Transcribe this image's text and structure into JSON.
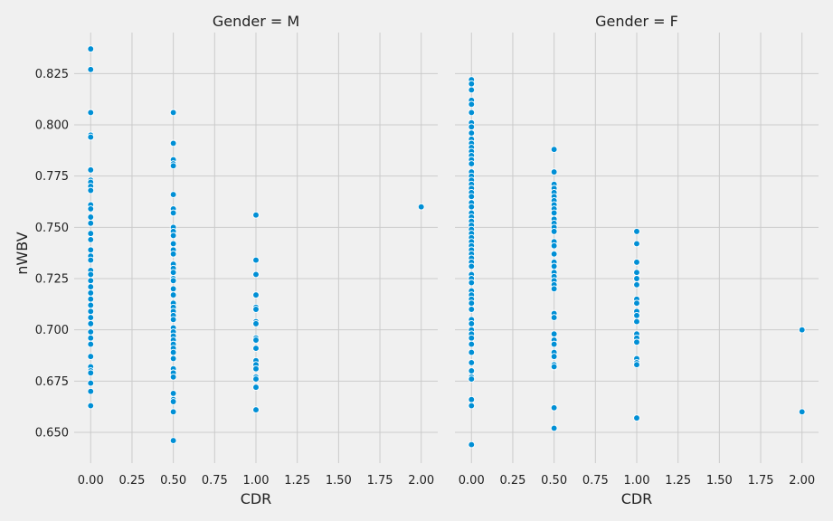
{
  "chart_data": {
    "type": "scatter",
    "xlabel": "CDR",
    "ylabel": "nWBV",
    "xlim": [
      -0.1,
      2.1
    ],
    "ylim": [
      0.635,
      0.845
    ],
    "x_ticks": [
      "0.00",
      "0.25",
      "0.50",
      "0.75",
      "1.00",
      "1.25",
      "1.50",
      "1.75",
      "2.00"
    ],
    "y_ticks": [
      "0.650",
      "0.675",
      "0.700",
      "0.725",
      "0.750",
      "0.775",
      "0.800",
      "0.825"
    ],
    "grid": true,
    "point_color": "#008fd5",
    "panels": [
      {
        "title": "Gender = M",
        "points": [
          {
            "cdr": 0.0,
            "values": [
              0.837,
              0.827,
              0.806,
              0.795,
              0.794,
              0.778,
              0.773,
              0.772,
              0.77,
              0.768,
              0.761,
              0.759,
              0.755,
              0.752,
              0.747,
              0.744,
              0.739,
              0.736,
              0.734,
              0.729,
              0.727,
              0.724,
              0.721,
              0.718,
              0.715,
              0.712,
              0.709,
              0.706,
              0.703,
              0.699,
              0.696,
              0.693,
              0.687,
              0.682,
              0.68,
              0.679,
              0.674,
              0.67,
              0.663
            ]
          },
          {
            "cdr": 0.5,
            "values": [
              0.806,
              0.791,
              0.783,
              0.781,
              0.78,
              0.766,
              0.759,
              0.757,
              0.75,
              0.748,
              0.746,
              0.742,
              0.739,
              0.737,
              0.732,
              0.73,
              0.728,
              0.725,
              0.724,
              0.72,
              0.717,
              0.713,
              0.711,
              0.709,
              0.707,
              0.705,
              0.701,
              0.699,
              0.697,
              0.695,
              0.693,
              0.691,
              0.689,
              0.686,
              0.681,
              0.679,
              0.677,
              0.669,
              0.666,
              0.665,
              0.66,
              0.646
            ]
          },
          {
            "cdr": 1.0,
            "values": [
              0.756,
              0.734,
              0.727,
              0.717,
              0.711,
              0.71,
              0.704,
              0.703,
              0.696,
              0.695,
              0.691,
              0.685,
              0.683,
              0.681,
              0.677,
              0.676,
              0.672,
              0.661
            ]
          },
          {
            "cdr": 2.0,
            "values": [
              0.76
            ]
          }
        ]
      },
      {
        "title": "Gender = F",
        "points": [
          {
            "cdr": 0.0,
            "values": [
              0.822,
              0.82,
              0.817,
              0.812,
              0.81,
              0.806,
              0.801,
              0.799,
              0.796,
              0.793,
              0.791,
              0.789,
              0.787,
              0.785,
              0.783,
              0.781,
              0.777,
              0.775,
              0.773,
              0.771,
              0.769,
              0.767,
              0.765,
              0.762,
              0.76,
              0.757,
              0.755,
              0.753,
              0.751,
              0.749,
              0.747,
              0.745,
              0.743,
              0.741,
              0.739,
              0.737,
              0.735,
              0.733,
              0.731,
              0.727,
              0.725,
              0.723,
              0.719,
              0.717,
              0.715,
              0.713,
              0.71,
              0.705,
              0.703,
              0.7,
              0.698,
              0.696,
              0.693,
              0.689,
              0.684,
              0.68,
              0.677,
              0.676,
              0.666,
              0.663,
              0.644
            ]
          },
          {
            "cdr": 0.5,
            "values": [
              0.788,
              0.777,
              0.771,
              0.769,
              0.767,
              0.765,
              0.763,
              0.761,
              0.759,
              0.757,
              0.754,
              0.752,
              0.75,
              0.748,
              0.743,
              0.741,
              0.737,
              0.733,
              0.731,
              0.728,
              0.726,
              0.724,
              0.722,
              0.72,
              0.708,
              0.706,
              0.698,
              0.695,
              0.693,
              0.689,
              0.687,
              0.683,
              0.682,
              0.662,
              0.652
            ]
          },
          {
            "cdr": 1.0,
            "values": [
              0.748,
              0.742,
              0.733,
              0.728,
              0.725,
              0.722,
              0.715,
              0.713,
              0.709,
              0.707,
              0.704,
              0.698,
              0.696,
              0.694,
              0.686,
              0.684,
              0.683,
              0.657
            ]
          },
          {
            "cdr": 2.0,
            "values": [
              0.7,
              0.66
            ]
          }
        ]
      }
    ]
  }
}
